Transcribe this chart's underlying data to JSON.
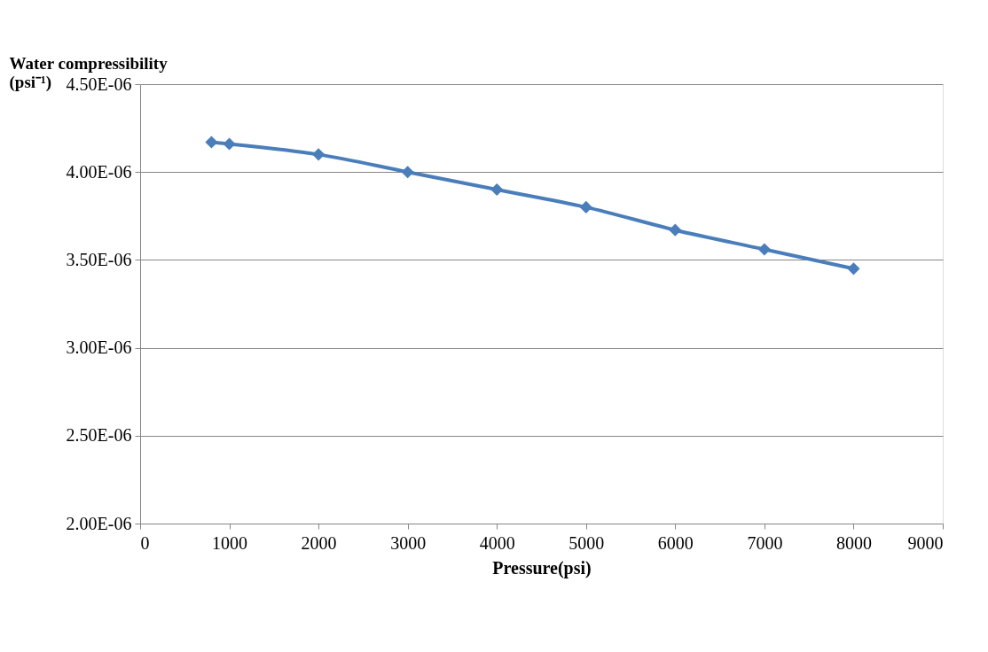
{
  "chart_data": {
    "type": "line",
    "ylabel": "Water compressibility (psi⁻¹)",
    "xlabel": "Pressure(psi)",
    "x": [
      800,
      1000,
      2000,
      3000,
      4000,
      5000,
      6000,
      7000,
      8000
    ],
    "series": [
      {
        "color": "#4a7ebb",
        "values": [
          4.17e-06,
          4.16e-06,
          4.1e-06,
          4e-06,
          3.9e-06,
          3.8e-06,
          3.67e-06,
          3.56e-06,
          3.45e-06
        ]
      }
    ],
    "xlim": [
      0,
      9000
    ],
    "xticks": [
      0,
      1000,
      2000,
      3000,
      4000,
      5000,
      6000,
      7000,
      8000,
      9000
    ],
    "ylim": [
      2e-06,
      4.5e-06
    ],
    "yticks": [
      {
        "value": 2e-06,
        "label": "2.00E-06"
      },
      {
        "value": 2.5e-06,
        "label": "2.50E-06"
      },
      {
        "value": 3e-06,
        "label": "3.00E-06"
      },
      {
        "value": 3.5e-06,
        "label": "3.50E-06"
      },
      {
        "value": 4e-06,
        "label": "4.00E-06"
      },
      {
        "value": 4.5e-06,
        "label": "4.50E-06"
      }
    ],
    "grid": "y",
    "marker": "diamond",
    "line_style": "solid"
  }
}
